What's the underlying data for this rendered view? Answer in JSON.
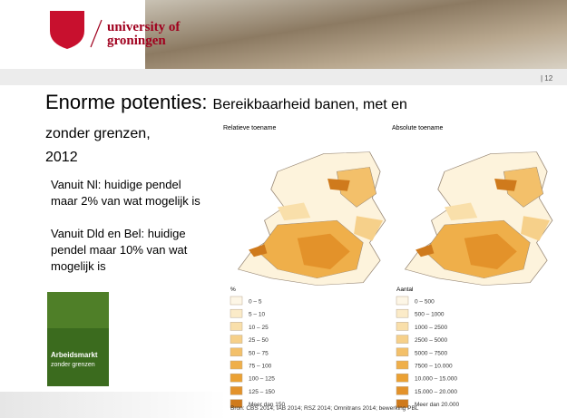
{
  "header": {
    "logo_line1": "university of",
    "logo_line2": "groningen",
    "page_number": "| 12"
  },
  "title": {
    "main": "Enorme potenties:",
    "sub_lines": [
      "Bereikbaarheid banen, met en",
      "zonder grenzen,",
      "2012"
    ]
  },
  "body": [
    [
      "Vanuit Nl: huidige pendel",
      "maar 2% van wat mogelijk is"
    ],
    [
      "Vanuit Dld en Bel: huidige",
      "pendel maar 10% van wat",
      "mogelijk is"
    ]
  ],
  "book_cover": {
    "title": "Arbeidsmarkt",
    "subtitle": "zonder grenzen"
  },
  "maps": [
    {
      "title": "Relatieve toename",
      "legend_title": "%",
      "legend": [
        {
          "label": "0 – 5",
          "color": "#fdf6e6"
        },
        {
          "label": "5 – 10",
          "color": "#fbebc8"
        },
        {
          "label": "10 – 25",
          "color": "#f9dfaa"
        },
        {
          "label": "25 – 50",
          "color": "#f6d08a"
        },
        {
          "label": "50 – 75",
          "color": "#f3c06a"
        },
        {
          "label": "75 – 100",
          "color": "#efaf4a"
        },
        {
          "label": "100 – 125",
          "color": "#eba133"
        },
        {
          "label": "125 – 150",
          "color": "#e3922a"
        },
        {
          "label": "Meer dan 150",
          "color": "#cf7a1c"
        }
      ]
    },
    {
      "title": "Absolute toename",
      "legend_title": "Aantal",
      "legend": [
        {
          "label": "0 – 500",
          "color": "#fdf6e6"
        },
        {
          "label": "500 – 1000",
          "color": "#fbebc8"
        },
        {
          "label": "1000 – 2500",
          "color": "#f9dfaa"
        },
        {
          "label": "2500 – 5000",
          "color": "#f6d08a"
        },
        {
          "label": "5000 – 7500",
          "color": "#f3c06a"
        },
        {
          "label": "7500 – 10.000",
          "color": "#efaf4a"
        },
        {
          "label": "10.000 – 15.000",
          "color": "#eba133"
        },
        {
          "label": "15.000 – 20.000",
          "color": "#e3922a"
        },
        {
          "label": "Meer dan 20.000",
          "color": "#cf7a1c"
        }
      ]
    }
  ],
  "source": "Bron: CBS 2014; IAB 2014; RSZ 2014; Omnitrans 2014; bewerking PBL"
}
